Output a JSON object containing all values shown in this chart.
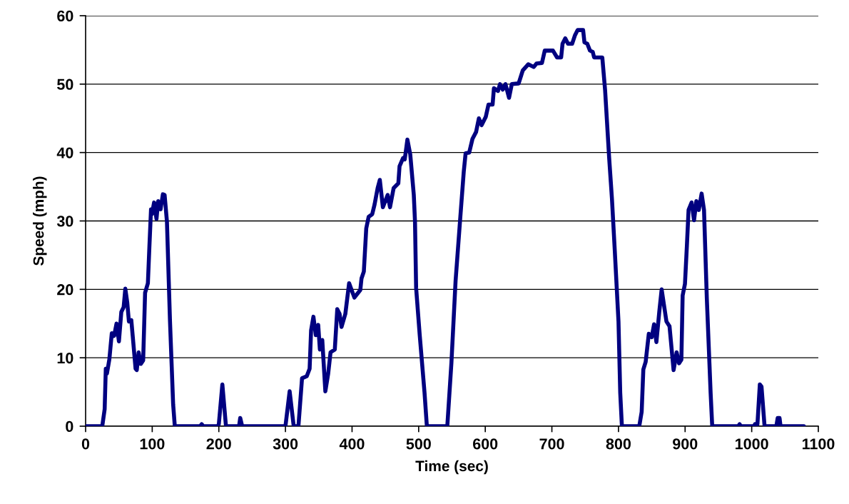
{
  "chart_data": {
    "type": "line",
    "xlabel": "Time (sec)",
    "ylabel": "Speed (mph)",
    "xlim": [
      0,
      1100
    ],
    "ylim": [
      0,
      60
    ],
    "xticks": [
      0,
      100,
      200,
      300,
      400,
      500,
      600,
      700,
      800,
      900,
      1000,
      1100
    ],
    "yticks": [
      0,
      10,
      20,
      30,
      40,
      50,
      60
    ],
    "grid": "y",
    "marker": "none",
    "line_style": "solid",
    "series": [
      {
        "color": "#000080",
        "x": [
          0,
          25,
          28.6,
          30.3,
          32,
          35.7,
          39.3,
          42.8,
          46.4,
          50,
          53.6,
          57.1,
          59.6,
          62.5,
          65,
          68.6,
          70.7,
          75,
          76.8,
          79.6,
          82.8,
          86.4,
          89.3,
          93.5,
          95.7,
          98.2,
          99.6,
          102.8,
          106.4,
          108.9,
          112.5,
          116,
          118.6,
          122.1,
          126.7,
          131.4,
          133.9,
          172,
          174.3,
          176.5,
          198.5,
          200,
          205.3,
          210.7,
          230.4,
          232.1,
          235,
          300,
          306.3,
          312.4,
          319.5,
          324.9,
          332,
          336.3,
          338.5,
          342,
          345.6,
          349.2,
          351.7,
          355.3,
          359.9,
          364.2,
          367.7,
          374.1,
          377.8,
          381.3,
          384.2,
          389.9,
          395.6,
          403.5,
          412.4,
          414.2,
          417.7,
          421.3,
          424.9,
          430.3,
          433.8,
          438.4,
          441.7,
          446.3,
          453.5,
          457,
          462.4,
          469.5,
          471.3,
          476.6,
          479.1,
          483.1,
          487.4,
          492.7,
          494.5,
          496.2,
          501.6,
          508.8,
          512.3,
          543,
          549.2,
          555.4,
          561.5,
          567.7,
          570.5,
          575.9,
          580.8,
          586.2,
          590.4,
          594.5,
          600.7,
          604.8,
          611,
          613,
          619.1,
          622.1,
          626.2,
          630.3,
          635.7,
          639.8,
          650.1,
          656.3,
          664.5,
          672.8,
          676.9,
          685.1,
          689.3,
          701.6,
          707.8,
          713.9,
          716,
          720.1,
          724.2,
          730.4,
          734.5,
          738.6,
          746.9,
          748.9,
          753.1,
          757.2,
          761.4,
          763.4,
          775.7,
          779.9,
          786,
          790.2,
          794.4,
          800,
          802.6,
          805.1,
          831.2,
          834.8,
          837.3,
          840.8,
          845.5,
          849.8,
          853.4,
          856.9,
          861.2,
          864.8,
          867.7,
          872,
          876.6,
          882.7,
          887.3,
          890.9,
          894.4,
          896.3,
          899.8,
          902.7,
          905.2,
          909.8,
          913.4,
          916.9,
          920.5,
          924.8,
          928.4,
          932.6,
          938.3,
          940.7,
          980,
          981.8,
          983.6,
          1003.3,
          1005,
          1008.6,
          1012.2,
          1014.7,
          1019.3,
          1037,
          1039,
          1041.8,
          1043.3,
          1078.3
        ],
        "values": [
          0,
          0,
          2.5,
          8.4,
          7.7,
          9.8,
          13.6,
          13.2,
          15.0,
          12.4,
          16.7,
          17.4,
          20.1,
          18.1,
          15.3,
          15.5,
          13.2,
          8.4,
          8.2,
          10.8,
          9.1,
          9.6,
          19.5,
          20.9,
          26.1,
          31.7,
          31.0,
          32.7,
          30.3,
          32.9,
          31.7,
          33.9,
          33.8,
          29.9,
          15.3,
          3.2,
          0,
          0,
          0.3,
          0,
          0,
          0.3,
          6.1,
          0,
          0,
          1.2,
          0,
          0,
          5.1,
          0,
          0,
          7.0,
          7.3,
          8.4,
          14.0,
          16.0,
          13.3,
          14.8,
          11.2,
          12.6,
          5.1,
          7.7,
          10.8,
          11.2,
          17.1,
          16.4,
          14.5,
          16.4,
          20.9,
          18.8,
          19.9,
          21.6,
          22.6,
          28.9,
          30.6,
          31.0,
          32.4,
          34.8,
          36.0,
          32.0,
          33.8,
          32.0,
          34.8,
          35.5,
          38.0,
          39.2,
          39.0,
          41.9,
          39.7,
          33.8,
          29.9,
          20.2,
          13.3,
          4.9,
          0,
          0,
          9.3,
          21.2,
          29.2,
          37.2,
          39.9,
          40,
          42.0,
          43.0,
          45.0,
          44.0,
          45.2,
          47.0,
          47.0,
          49.4,
          49.0,
          50.0,
          49.2,
          50.0,
          48.0,
          50.0,
          50.1,
          52.0,
          52.9,
          52.5,
          53.0,
          53.1,
          54.9,
          54.9,
          53.9,
          53.9,
          55.9,
          56.7,
          55.9,
          55.9,
          57.1,
          57.9,
          57.9,
          56.1,
          55.9,
          54.9,
          54.7,
          53.9,
          53.9,
          49.1,
          39.2,
          33.2,
          25.7,
          15.3,
          4.9,
          0,
          0,
          2.1,
          8.3,
          9.4,
          13.5,
          13.0,
          14.9,
          12.3,
          16.7,
          20.0,
          18.1,
          15.3,
          14.6,
          8.2,
          10.8,
          9.2,
          9.7,
          19.1,
          20.8,
          26.4,
          31.6,
          32.7,
          30.1,
          32.9,
          31.6,
          34.0,
          31.6,
          18.7,
          4.9,
          0,
          0,
          0.3,
          0,
          0,
          0.3,
          0.3,
          6.1,
          5.8,
          0,
          0,
          1.2,
          1.2,
          0,
          0
        ]
      }
    ]
  }
}
